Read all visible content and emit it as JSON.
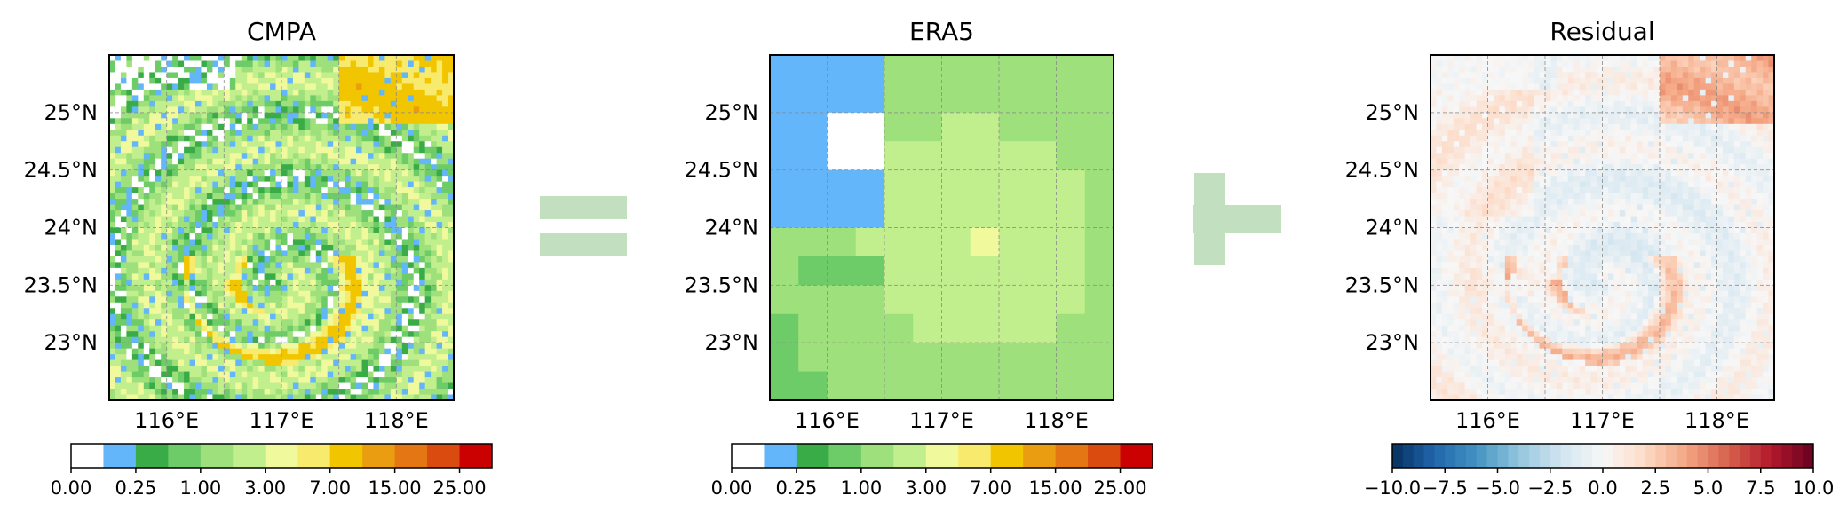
{
  "chart_data": [
    {
      "type": "heatmap",
      "title": "CMPA",
      "x_ticks": [
        "116°E",
        "117°E",
        "118°E"
      ],
      "y_ticks": [
        "25°N",
        "24.5°N",
        "24°N",
        "23.5°N",
        "23°N"
      ],
      "extent": {
        "lon": [
          115.5,
          118.5
        ],
        "lat": [
          22.5,
          25.5
        ]
      },
      "grid": true,
      "colorbar": {
        "labels": [
          "0.00",
          "0.25",
          "1.00",
          "3.00",
          "7.00",
          "15.00",
          "25.00"
        ],
        "bins": 13
      }
    },
    {
      "type": "heatmap",
      "title": "ERA5",
      "x_ticks": [
        "116°E",
        "117°E",
        "118°E"
      ],
      "y_ticks": [
        "25°N",
        "24.5°N",
        "24°N",
        "23.5°N",
        "23°N"
      ],
      "extent": {
        "lon": [
          115.5,
          118.5
        ],
        "lat": [
          22.5,
          25.5
        ]
      },
      "grid": true,
      "colorbar": {
        "labels": [
          "0.00",
          "0.25",
          "1.00",
          "3.00",
          "7.00",
          "15.00",
          "25.00"
        ],
        "bins": 13
      }
    },
    {
      "type": "heatmap",
      "title": "Residual",
      "x_ticks": [
        "116°E",
        "117°E",
        "118°E"
      ],
      "y_ticks": [
        "25°N",
        "24.5°N",
        "24°N",
        "23.5°N",
        "23°N"
      ],
      "extent": {
        "lon": [
          115.5,
          118.5
        ],
        "lat": [
          22.5,
          25.5
        ]
      },
      "grid": true,
      "colorbar": {
        "labels": [
          "−10.0",
          "−7.5",
          "−5.0",
          "−2.5",
          "0.0",
          "2.5",
          "5.0",
          "7.5",
          "10.0"
        ],
        "range": [
          -10,
          10
        ]
      }
    }
  ],
  "operators": [
    {
      "kind": "equals",
      "color": "#c2dfc0"
    },
    {
      "kind": "plus",
      "color": "#c2dfc0"
    }
  ],
  "colors": {
    "precip_scale": [
      "#ffffff",
      "#62b6f9",
      "#3aac47",
      "#6dcc68",
      "#9ee07b",
      "#c2ef8d",
      "#f0fa9d",
      "#f7ea6c",
      "#f1c600",
      "#ea9d10",
      "#e57614",
      "#d94b0f",
      "#cb0000"
    ]
  }
}
